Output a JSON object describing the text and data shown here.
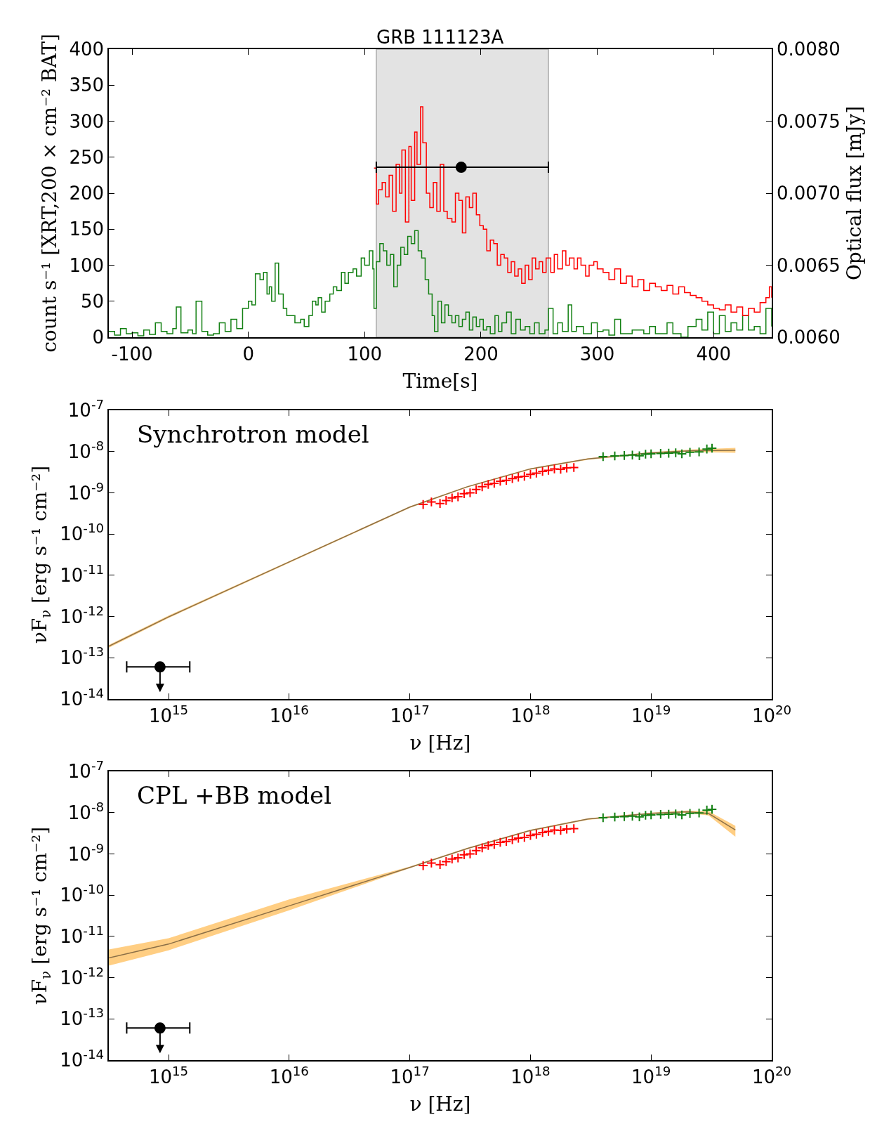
{
  "chart_data": [
    {
      "type": "step",
      "title": "GRB 111123A",
      "xlabel": "Time[s]",
      "ylabel": "count s⁻¹ [XRT,200 × cm⁻² BAT]",
      "y2label": "Optical flux [mJy]",
      "xlim": [
        -120,
        450
      ],
      "xticks": [
        -100,
        0,
        100,
        200,
        300,
        400
      ],
      "ylim": [
        0,
        400
      ],
      "yticks": [
        0,
        50,
        100,
        150,
        200,
        250,
        300,
        350,
        400
      ],
      "y2lim": [
        0.006,
        0.008
      ],
      "y2ticks": [
        {
          "value": 0.006,
          "label": "0.0060"
        },
        {
          "value": 0.0065,
          "label": "0.0065"
        },
        {
          "value": 0.007,
          "label": "0.0070"
        },
        {
          "value": 0.0075,
          "label": "0.0075"
        },
        {
          "value": 0.008,
          "label": "0.0080"
        }
      ],
      "bands": [
        {
          "axis": "x",
          "from": 110,
          "to": 258,
          "color": "#e3e3e3"
        }
      ],
      "series": [
        {
          "color": "#138013",
          "x": [
            -120,
            -115,
            -110,
            -105,
            -100,
            -95,
            -90,
            -85,
            -80,
            -75,
            -70,
            -65,
            -62,
            -58,
            -52,
            -48,
            -45,
            -40,
            -35,
            -30,
            -25,
            -20,
            -15,
            -10,
            -5,
            0,
            3,
            6,
            10,
            13,
            16,
            18,
            20,
            23,
            26,
            30,
            33,
            37,
            40,
            45,
            48,
            52,
            55,
            58,
            60,
            63,
            66,
            70,
            73,
            76,
            80,
            83,
            86,
            90,
            93,
            97,
            100,
            104,
            107,
            108,
            110,
            113,
            116,
            119,
            122,
            125,
            128,
            131,
            134,
            137,
            140,
            143,
            146,
            149,
            152,
            155,
            158,
            160,
            163,
            166,
            169,
            172,
            175,
            178,
            181,
            184,
            187,
            190,
            193,
            196,
            199,
            202,
            205,
            208,
            212,
            215,
            218,
            222,
            226,
            230,
            234,
            238,
            242,
            246,
            250,
            255,
            258,
            262,
            266,
            270,
            275,
            278,
            282,
            288,
            295,
            300,
            305,
            310,
            315,
            320,
            330,
            340,
            345,
            350,
            360,
            365,
            372,
            378,
            385,
            390,
            395,
            400,
            405,
            410,
            415,
            420,
            425,
            430,
            435,
            440,
            445,
            450
          ],
          "values": [
            8,
            3,
            12,
            5,
            6,
            2,
            10,
            4,
            20,
            8,
            5,
            12,
            42,
            6,
            10,
            5,
            50,
            8,
            3,
            5,
            20,
            8,
            25,
            12,
            40,
            50,
            45,
            88,
            80,
            90,
            60,
            70,
            50,
            103,
            60,
            40,
            30,
            30,
            20,
            25,
            15,
            30,
            50,
            45,
            55,
            35,
            50,
            60,
            70,
            65,
            90,
            75,
            90,
            95,
            85,
            110,
            100,
            120,
            95,
            40,
            105,
            130,
            120,
            100,
            115,
            70,
            100,
            125,
            115,
            140,
            130,
            148,
            120,
            110,
            80,
            60,
            30,
            8,
            50,
            20,
            45,
            30,
            20,
            30,
            15,
            25,
            35,
            10,
            28,
            15,
            25,
            10,
            15,
            5,
            30,
            8,
            20,
            35,
            5,
            25,
            10,
            15,
            5,
            20,
            5,
            10,
            40,
            5,
            20,
            8,
            45,
            8,
            15,
            5,
            20,
            8,
            10,
            3,
            25,
            5,
            10,
            5,
            15,
            5,
            20,
            5,
            0,
            15,
            25,
            10,
            35,
            5,
            30,
            8,
            20,
            10,
            30,
            10,
            15,
            5,
            40,
            15
          ]
        },
        {
          "color": "#ff0000",
          "x": [
            108,
            110,
            112,
            115,
            118,
            121,
            124,
            127,
            130,
            132,
            135,
            138,
            140,
            143,
            145,
            148,
            150,
            153,
            156,
            159,
            162,
            165,
            168,
            171,
            175,
            178,
            181,
            184,
            187,
            190,
            193,
            196,
            199,
            202,
            205,
            208,
            211,
            214,
            217,
            220,
            223,
            226,
            229,
            232,
            235,
            238,
            241,
            244,
            247,
            250,
            253,
            256,
            260,
            263,
            266,
            270,
            273,
            276,
            280,
            283,
            286,
            290,
            293,
            297,
            300,
            305,
            310,
            315,
            320,
            325,
            330,
            335,
            340,
            345,
            350,
            355,
            360,
            365,
            370,
            375,
            380,
            385,
            390,
            395,
            400,
            405,
            410,
            415,
            420,
            425,
            430,
            435,
            440,
            445,
            448,
            450
          ],
          "values": [
            235,
            185,
            205,
            215,
            195,
            225,
            175,
            240,
            200,
            260,
            160,
            265,
            190,
            285,
            240,
            320,
            270,
            200,
            180,
            215,
            175,
            240,
            175,
            165,
            160,
            200,
            190,
            145,
            195,
            180,
            200,
            170,
            155,
            150,
            120,
            135,
            130,
            100,
            115,
            110,
            90,
            105,
            85,
            95,
            75,
            100,
            80,
            110,
            95,
            105,
            90,
            110,
            90,
            115,
            95,
            120,
            100,
            110,
            95,
            110,
            100,
            85,
            100,
            105,
            95,
            90,
            80,
            95,
            75,
            85,
            70,
            80,
            65,
            75,
            70,
            65,
            72,
            60,
            70,
            62,
            58,
            55,
            50,
            45,
            40,
            38,
            45,
            35,
            42,
            30,
            40,
            35,
            48,
            55,
            70,
            55
          ]
        },
        {
          "type": "scatter",
          "axis": "y2",
          "color": "#000000",
          "marker": "circle",
          "x": [
            183
          ],
          "values": [
            0.00718
          ],
          "xerrors": [
            [
              110,
              258
            ]
          ]
        }
      ]
    },
    {
      "type": "line",
      "annotations": [
        "Synchrotron model"
      ],
      "xlabel": "ν [Hz]",
      "ylabel": "νF$_{ν}$ [erg s⁻¹ cm⁻²]",
      "log": "xy",
      "xlim": [
        320000000000000.0,
        1e+20
      ],
      "xticks": [
        {
          "value": 1000000000000000.0,
          "label": "10$^{15}$"
        },
        {
          "value": 1e+16,
          "label": "10$^{16}$"
        },
        {
          "value": 1e+17,
          "label": "10$^{17}$"
        },
        {
          "value": 1e+18,
          "label": "10$^{18}$"
        },
        {
          "value": 1e+19,
          "label": "10$^{19}$"
        },
        {
          "value": 1e+20,
          "label": "10$^{20}$"
        }
      ],
      "ylim": [
        1e-14,
        1e-07
      ],
      "yticks": [
        {
          "value": 1e-14,
          "label": "10$^{-14}$"
        },
        {
          "value": 1e-13,
          "label": "10$^{-13}$"
        },
        {
          "value": 1e-12,
          "label": "10$^{-12}$"
        },
        {
          "value": 1e-11,
          "label": "10$^{-11}$"
        },
        {
          "value": 1e-10,
          "label": "10$^{-10}$"
        },
        {
          "value": 1e-09,
          "label": "10$^{-9}$"
        },
        {
          "value": 1e-08,
          "label": "10$^{-8}$"
        },
        {
          "value": 1e-07,
          "label": "10$^{-7}$"
        }
      ],
      "series": [
        {
          "color": "#8b6f47",
          "x": [
            320000000000000.0,
            1000000000000000.0,
            1e+16,
            1e+17,
            3e+17,
            1e+18,
            3e+18,
            1e+19,
            2.2e+19,
            5e+19
          ],
          "values": [
            1.9e-13,
            9.8e-13,
            2.1e-11,
            4.5e-10,
            1.4e-09,
            3.8e-09,
            6.6e-09,
            9.3e-09,
            1.05e-08,
            1.07e-08
          ],
          "lower": [
            1.75e-13,
            9.2e-13,
            2e-11,
            4.3e-10,
            1.35e-09,
            3.65e-09,
            6.3e-09,
            8.9e-09,
            9.8e-09,
            9.3e-09
          ],
          "upper": [
            2.05e-13,
            1.05e-12,
            2.2e-11,
            4.7e-10,
            1.45e-09,
            3.95e-09,
            6.9e-09,
            9.7e-09,
            1.12e-08,
            1.23e-08
          ]
        },
        {
          "type": "scatter",
          "marker": "cross",
          "color": "#ff0000",
          "x": [
            1.29e+17,
            1.51e+17,
            1.78e+17,
            2e+17,
            2.24e+17,
            2.51e+17,
            2.82e+17,
            3.16e+17,
            3.55e+17,
            3.98e+17,
            4.47e+17,
            5.01e+17,
            5.62e+17,
            6.31e+17,
            7.08e+17,
            7.94e+17,
            8.91e+17,
            1e+18,
            1.12e+18,
            1.26e+18,
            1.41e+18,
            1.58e+18,
            1.78e+18,
            2e+18,
            2.29e+18
          ],
          "values": [
            5.2e-10,
            6e-10,
            5.5e-10,
            6.5e-10,
            7.5e-10,
            8e-10,
            9.5e-10,
            1e-09,
            1.2e-09,
            1.4e-09,
            1.6e-09,
            1.7e-09,
            1.9e-09,
            2e-09,
            2.2e-09,
            2.4e-09,
            2.5e-09,
            2.8e-09,
            3e-09,
            3.3e-09,
            3.5e-09,
            3.8e-09,
            3.7e-09,
            4e-09,
            4.1e-09
          ]
        },
        {
          "type": "scatter",
          "marker": "cross",
          "color": "#138013",
          "x": [
            4e+18,
            5e+18,
            6e+18,
            7e+18,
            8e+18,
            9e+18,
            1e+19,
            1.2e+19,
            1.4e+19,
            1.6e+19,
            1.8e+19,
            2.1e+19,
            2.5e+19,
            2.9e+19,
            3.2e+19
          ],
          "values": [
            7.5e-09,
            7.8e-09,
            8e-09,
            8.2e-09,
            7.9e-09,
            8.6e-09,
            8.8e-09,
            9e-09,
            9.1e-09,
            9.3e-09,
            8.8e-09,
            9.6e-09,
            9.8e-09,
            1.15e-08,
            1.2e-08
          ]
        },
        {
          "type": "scatter",
          "marker": "circle",
          "color": "#000000",
          "x": [
            850000000000000.0
          ],
          "values": [
            6e-14
          ],
          "xerrors": [
            [
              450000000000000.0,
              1500000000000000.0
            ]
          ]
        }
      ]
    },
    {
      "type": "line",
      "annotations": [
        "CPL +BB model"
      ],
      "xlabel": "ν [Hz]",
      "ylabel": "νF$_{ν}$ [erg s⁻¹ cm⁻²]",
      "log": "xy",
      "xlim": [
        320000000000000.0,
        1e+20
      ],
      "xticks": [
        {
          "value": 1000000000000000.0,
          "label": "10$^{15}$"
        },
        {
          "value": 1e+16,
          "label": "10$^{16}$"
        },
        {
          "value": 1e+17,
          "label": "10$^{17}$"
        },
        {
          "value": 1e+18,
          "label": "10$^{18}$"
        },
        {
          "value": 1e+19,
          "label": "10$^{19}$"
        },
        {
          "value": 1e+20,
          "label": "10$^{20}$"
        }
      ],
      "ylim": [
        1e-14,
        1e-07
      ],
      "yticks": [
        {
          "value": 1e-14,
          "label": "10$^{-14}$"
        },
        {
          "value": 1e-13,
          "label": "10$^{-13}$"
        },
        {
          "value": 1e-12,
          "label": "10$^{-12}$"
        },
        {
          "value": 1e-11,
          "label": "10$^{-11}$"
        },
        {
          "value": 1e-10,
          "label": "10$^{-10}$"
        },
        {
          "value": 1e-09,
          "label": "10$^{-9}$"
        },
        {
          "value": 1e-08,
          "label": "10$^{-8}$"
        },
        {
          "value": 1e-07,
          "label": "10$^{-7}$"
        }
      ],
      "series": [
        {
          "color": "#8b6f47",
          "x": [
            320000000000000.0,
            1000000000000000.0,
            1e+16,
            1e+17,
            3e+17,
            1e+18,
            3e+18,
            1e+19,
            2e+19,
            3e+19,
            5e+19
          ],
          "values": [
            3e-12,
            6.5e-12,
            5.5e-11,
            4.7e-10,
            1.35e-09,
            3.7e-09,
            7e-09,
            9.6e-09,
            1.05e-08,
            9.5e-09,
            3.8e-09
          ],
          "lower": [
            1.95e-12,
            4.6e-12,
            4.3e-11,
            4.5e-10,
            1.3e-09,
            3.55e-09,
            6.7e-09,
            9.2e-09,
            9.8e-09,
            8.5e-09,
            2.6e-09
          ],
          "upper": [
            4.8e-12,
            9e-12,
            7.9e-11,
            4.9e-10,
            1.4e-09,
            3.85e-09,
            7.3e-09,
            1e-08,
            1.12e-08,
            1.08e-08,
            4.8e-09
          ]
        },
        {
          "type": "scatter",
          "marker": "cross",
          "color": "#ff0000",
          "x": [
            1.29e+17,
            1.51e+17,
            1.78e+17,
            2e+17,
            2.24e+17,
            2.51e+17,
            2.82e+17,
            3.16e+17,
            3.55e+17,
            3.98e+17,
            4.47e+17,
            5.01e+17,
            5.62e+17,
            6.31e+17,
            7.08e+17,
            7.94e+17,
            8.91e+17,
            1e+18,
            1.12e+18,
            1.26e+18,
            1.41e+18,
            1.58e+18,
            1.78e+18,
            2e+18,
            2.29e+18
          ],
          "values": [
            5.2e-10,
            6e-10,
            5.5e-10,
            6.5e-10,
            7.5e-10,
            8e-10,
            9.5e-10,
            1e-09,
            1.2e-09,
            1.4e-09,
            1.6e-09,
            1.7e-09,
            1.9e-09,
            2e-09,
            2.2e-09,
            2.4e-09,
            2.5e-09,
            2.8e-09,
            3e-09,
            3.3e-09,
            3.5e-09,
            3.8e-09,
            3.7e-09,
            4e-09,
            4.1e-09
          ]
        },
        {
          "type": "scatter",
          "marker": "cross",
          "color": "#138013",
          "x": [
            4e+18,
            5e+18,
            6e+18,
            7e+18,
            8e+18,
            9e+18,
            1e+19,
            1.2e+19,
            1.4e+19,
            1.6e+19,
            1.8e+19,
            2.1e+19,
            2.5e+19,
            2.9e+19,
            3.2e+19
          ],
          "values": [
            7.5e-09,
            7.8e-09,
            8e-09,
            8.2e-09,
            7.9e-09,
            8.6e-09,
            8.8e-09,
            9e-09,
            9.1e-09,
            9.3e-09,
            8.8e-09,
            9.6e-09,
            9.8e-09,
            1.15e-08,
            1.2e-08
          ]
        },
        {
          "type": "scatter",
          "marker": "circle",
          "color": "#000000",
          "x": [
            850000000000000.0
          ],
          "values": [
            6e-14
          ],
          "xerrors": [
            [
              450000000000000.0,
              1500000000000000.0
            ]
          ]
        }
      ]
    }
  ]
}
